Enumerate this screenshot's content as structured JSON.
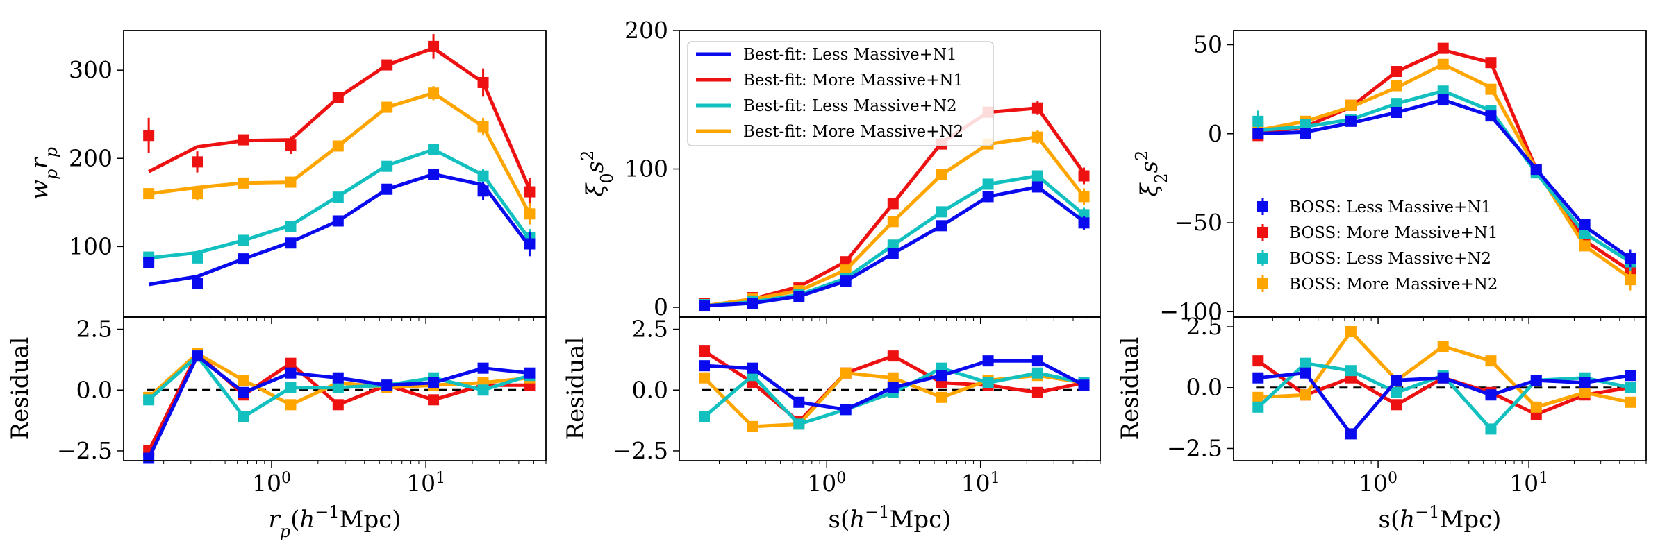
{
  "colors": {
    "Less Massive+N1": "#0a0aee",
    "More Massive+N1": "#ee1111",
    "Less Massive+N2": "#12c0c0",
    "More Massive+N2": "#ffa500"
  },
  "series_order": [
    "More Massive+N1",
    "More Massive+N2",
    "Less Massive+N2",
    "Less Massive+N1"
  ],
  "legends": {
    "fit": {
      "entries": [
        "Best-fit: Less Massive+N1",
        "Best-fit: More Massive+N1",
        "Best-fit: Less Massive+N2",
        "Best-fit: More Massive+N2"
      ]
    },
    "data": {
      "entries": [
        "BOSS: Less Massive+N1",
        "BOSS: More Massive+N1",
        "BOSS: Less Massive+N2",
        "BOSS: More Massive+N2"
      ]
    }
  },
  "chart_data": [
    {
      "type": "line",
      "id": "wp",
      "x": [
        0.16,
        0.33,
        0.66,
        1.33,
        2.7,
        5.6,
        11.2,
        23.5,
        47
      ],
      "xscale": "log",
      "xlim": [
        0.11,
        60
      ],
      "ylim": [
        20,
        345
      ],
      "yticks": [
        100,
        200,
        300
      ],
      "yticklabels": [
        "100",
        "200",
        "300"
      ],
      "xticklabels": [
        "10^0",
        "10^1"
      ],
      "ylabel": "w_p r_p",
      "xlabel": "r_p(h^{-1}Mpc)",
      "legend": null,
      "series": [
        {
          "name": "More Massive+N1",
          "data": [
            226,
            196,
            221,
            215,
            269,
            306,
            327,
            286,
            162
          ],
          "err": [
            20,
            12,
            6,
            10,
            6,
            6,
            14,
            16,
            16
          ],
          "fit": [
            185,
            213,
            220,
            221,
            269,
            306,
            325,
            286,
            165
          ]
        },
        {
          "name": "More Massive+N2",
          "data": [
            160,
            160,
            172,
            173,
            214,
            258,
            274,
            236,
            137
          ],
          "err": [
            5,
            8,
            6,
            6,
            6,
            6,
            8,
            10,
            12
          ],
          "fit": [
            160,
            167,
            172,
            173,
            214,
            258,
            274,
            236,
            137
          ]
        },
        {
          "name": "Less Massive+N2",
          "data": [
            88,
            87,
            107,
            123,
            156,
            191,
            210,
            180,
            110
          ],
          "err": [
            5,
            6,
            5,
            5,
            5,
            5,
            6,
            8,
            10
          ],
          "fit": [
            87,
            93,
            107,
            124,
            157,
            192,
            210,
            181,
            108
          ]
        },
        {
          "name": "Less Massive+N1",
          "data": [
            82,
            58,
            86,
            104,
            129,
            165,
            182,
            163,
            103
          ],
          "err": [
            6,
            6,
            5,
            5,
            5,
            5,
            6,
            10,
            14
          ],
          "fit": [
            57,
            66,
            86,
            105,
            129,
            165,
            182,
            170,
            100
          ]
        }
      ]
    },
    {
      "type": "line",
      "id": "xi0",
      "x": [
        0.16,
        0.33,
        0.66,
        1.33,
        2.7,
        5.6,
        11.2,
        23.5,
        47
      ],
      "xscale": "log",
      "xlim": [
        0.11,
        60
      ],
      "ylim": [
        -7,
        200
      ],
      "yticks": [
        0,
        100,
        200
      ],
      "yticklabels": [
        "0",
        "100",
        "200"
      ],
      "xticklabels": [
        "10^0",
        "10^1"
      ],
      "ylabel": "ξ_0 s^2",
      "xlabel": "",
      "legend": "fit",
      "series": [
        {
          "name": "More Massive+N1",
          "data": [
            3,
            7,
            14,
            33,
            75,
            118,
            141,
            144,
            95
          ],
          "err": [
            2,
            2,
            3,
            3,
            4,
            4,
            4,
            5,
            6
          ],
          "fit": [
            1,
            6,
            15,
            33,
            75,
            119,
            141,
            144,
            97
          ]
        },
        {
          "name": "More Massive+N2",
          "data": [
            2,
            6,
            12,
            27,
            62,
            96,
            118,
            123,
            80
          ],
          "err": [
            2,
            2,
            3,
            3,
            3,
            4,
            4,
            5,
            6
          ],
          "fit": [
            1,
            6,
            12,
            27,
            62,
            96,
            118,
            123,
            80
          ]
        },
        {
          "name": "Less Massive+N2",
          "data": [
            2,
            4,
            9,
            21,
            45,
            69,
            89,
            95,
            67
          ],
          "err": [
            2,
            2,
            2,
            3,
            3,
            3,
            4,
            4,
            5
          ],
          "fit": [
            1,
            4,
            9,
            21,
            45,
            69,
            89,
            95,
            67
          ]
        },
        {
          "name": "Less Massive+N1",
          "data": [
            1,
            3,
            8,
            19,
            39,
            59,
            80,
            87,
            61
          ],
          "err": [
            2,
            2,
            2,
            3,
            3,
            3,
            4,
            4,
            5
          ],
          "fit": [
            1,
            3,
            8,
            19,
            39,
            59,
            80,
            87,
            62
          ]
        }
      ]
    },
    {
      "type": "line",
      "id": "xi2",
      "x": [
        0.16,
        0.33,
        0.66,
        1.33,
        2.7,
        5.6,
        11.2,
        23.5,
        47
      ],
      "xscale": "log",
      "xlim": [
        0.11,
        60
      ],
      "ylim": [
        -103,
        58
      ],
      "yticks": [
        -100,
        -50,
        0,
        50
      ],
      "yticklabels": [
        "−100",
        "−50",
        "0",
        "50"
      ],
      "xticklabels": [
        "10^0",
        "10^1"
      ],
      "ylabel": "ξ_2 s^2",
      "xlabel": "",
      "legend": "data",
      "series": [
        {
          "name": "More Massive+N1",
          "data": [
            -1,
            5,
            16,
            35,
            48,
            40,
            -21,
            -60,
            -77
          ],
          "err": [
            2,
            2,
            2,
            2,
            2,
            2,
            2,
            3,
            8
          ],
          "fit": [
            0,
            4,
            15,
            35,
            47,
            40,
            -20,
            -60,
            -77
          ]
        },
        {
          "name": "More Massive+N2",
          "data": [
            4,
            7,
            16,
            27,
            39,
            25,
            -20,
            -63,
            -82
          ],
          "err": [
            2,
            2,
            2,
            2,
            2,
            2,
            2,
            3,
            6
          ],
          "fit": [
            2,
            7,
            15,
            26,
            39,
            26,
            -20,
            -63,
            -81
          ]
        },
        {
          "name": "Less Massive+N2",
          "data": [
            7,
            5,
            8,
            17,
            24,
            13,
            -22,
            -56,
            -72
          ],
          "err": [
            6,
            2,
            2,
            2,
            2,
            2,
            2,
            3,
            5
          ],
          "fit": [
            2,
            4,
            8,
            17,
            24,
            13,
            -22,
            -56,
            -72
          ]
        },
        {
          "name": "Less Massive+N1",
          "data": [
            0,
            0,
            7,
            12,
            19,
            10,
            -20,
            -51,
            -70
          ],
          "err": [
            2,
            2,
            2,
            2,
            2,
            2,
            2,
            3,
            5
          ],
          "fit": [
            0,
            1,
            6,
            12,
            19,
            10,
            -20,
            -52,
            -70
          ]
        }
      ]
    },
    {
      "type": "line",
      "id": "res-wp",
      "x": [
        0.16,
        0.33,
        0.66,
        1.33,
        2.7,
        5.6,
        11.2,
        23.5,
        47
      ],
      "xscale": "log",
      "xlim": [
        0.11,
        60
      ],
      "ylim": [
        -2.9,
        3.0
      ],
      "yticks": [
        -2.5,
        0,
        2.5
      ],
      "yticklabels": [
        "−2.5",
        "0.0",
        "2.5"
      ],
      "xticklabels": [
        "10^0",
        "10^1"
      ],
      "ylabel": "Residual",
      "xlabel": "r_p(h^{-1}Mpc)",
      "zero_line": true,
      "series": [
        {
          "name": "More Massive+N1",
          "values": [
            -2.5,
            1.5,
            -0.2,
            1.1,
            -0.6,
            0.2,
            -0.4,
            0.2,
            0.2
          ]
        },
        {
          "name": "More Massive+N2",
          "values": [
            -0.3,
            1.5,
            0.4,
            -0.6,
            0.3,
            0.1,
            0.2,
            0.3,
            0.5
          ]
        },
        {
          "name": "Less Massive+N2",
          "values": [
            -0.4,
            1.4,
            -1.1,
            0.1,
            0.1,
            0.2,
            0.5,
            0.0,
            0.6
          ]
        },
        {
          "name": "Less Massive+N1",
          "values": [
            -2.8,
            1.4,
            -0.1,
            0.7,
            0.5,
            0.2,
            0.3,
            0.9,
            0.7
          ]
        }
      ]
    },
    {
      "type": "line",
      "id": "res-xi0",
      "x": [
        0.16,
        0.33,
        0.66,
        1.33,
        2.7,
        5.6,
        11.2,
        23.5,
        47
      ],
      "xscale": "log",
      "xlim": [
        0.11,
        60
      ],
      "ylim": [
        -2.9,
        3.0
      ],
      "yticks": [
        -2.5,
        0,
        2.5
      ],
      "yticklabels": [
        "−2.5",
        "0.0",
        "2.5"
      ],
      "xticklabels": [
        "10^0",
        "10^1"
      ],
      "ylabel": "Residual",
      "xlabel": "s(h^{-1}Mpc)",
      "zero_line": true,
      "series": [
        {
          "name": "More Massive+N1",
          "values": [
            1.6,
            0.3,
            -1.3,
            0.7,
            1.4,
            0.3,
            0.2,
            -0.1,
            0.3
          ]
        },
        {
          "name": "More Massive+N2",
          "values": [
            0.5,
            -1.5,
            -1.4,
            0.7,
            0.5,
            -0.3,
            0.4,
            0.6,
            0.3
          ]
        },
        {
          "name": "Less Massive+N2",
          "values": [
            -1.1,
            0.6,
            -1.4,
            -0.8,
            -0.1,
            0.9,
            0.3,
            0.7,
            0.3
          ]
        },
        {
          "name": "Less Massive+N1",
          "values": [
            1.0,
            0.9,
            -0.5,
            -0.8,
            0.1,
            0.6,
            1.2,
            1.2,
            0.2
          ]
        }
      ]
    },
    {
      "type": "line",
      "id": "res-xi2",
      "x": [
        0.16,
        0.33,
        0.66,
        1.33,
        2.7,
        5.6,
        11.2,
        23.5,
        47
      ],
      "xscale": "log",
      "xlim": [
        0.11,
        60
      ],
      "ylim": [
        -3.0,
        2.9
      ],
      "yticks": [
        -2.5,
        0,
        2.5
      ],
      "yticklabels": [
        "−2.5",
        "0.0",
        "2.5"
      ],
      "xticklabels": [
        "10^0",
        "10^1"
      ],
      "ylabel": "Residual",
      "xlabel": "s(h^{-1}Mpc)",
      "zero_line": true,
      "series": [
        {
          "name": "More Massive+N1",
          "values": [
            1.1,
            -0.3,
            0.4,
            -0.7,
            0.4,
            -0.2,
            -1.1,
            -0.3,
            0.0
          ]
        },
        {
          "name": "More Massive+N2",
          "values": [
            -0.4,
            -0.3,
            2.3,
            0.3,
            1.7,
            1.1,
            -0.8,
            -0.2,
            -0.6
          ]
        },
        {
          "name": "Less Massive+N2",
          "values": [
            -0.8,
            1.0,
            0.7,
            -0.2,
            0.5,
            -1.7,
            0.3,
            0.4,
            0.0
          ]
        },
        {
          "name": "Less Massive+N1",
          "values": [
            0.4,
            0.6,
            -1.9,
            0.3,
            0.4,
            -0.3,
            0.3,
            0.2,
            0.5
          ]
        }
      ]
    }
  ]
}
